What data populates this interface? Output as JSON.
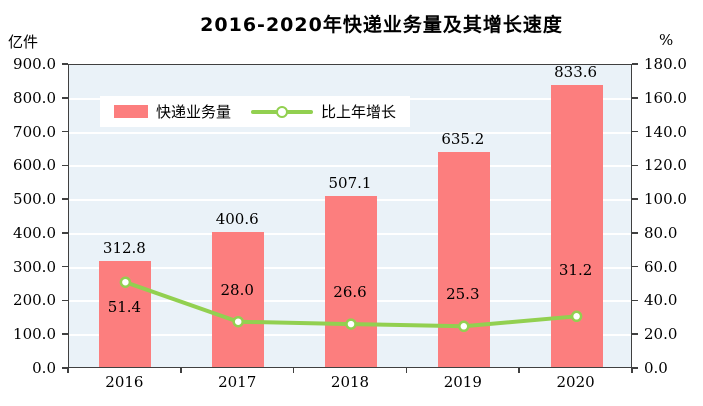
{
  "title": "2016-2020年快递业务量及其增长速度",
  "left_axis_unit": "亿件",
  "right_axis_unit": "%",
  "legend": {
    "bar_label": "快递业务量",
    "line_label": "比上年增长"
  },
  "colors": {
    "bar": "#fc7e7e",
    "line": "#92d050",
    "marker_fill": "#ffffff",
    "plot_bg": "#eaf2f8",
    "grid": "#ffffff",
    "frame": "#404040",
    "text": "#000000"
  },
  "chart_data": {
    "type": "bar",
    "subtype": "bar+line combo, dual axis",
    "title": "2016-2020年快递业务量及其增长速度",
    "categories": [
      "2016",
      "2017",
      "2018",
      "2019",
      "2020"
    ],
    "series": [
      {
        "name": "快递业务量",
        "type": "bar",
        "axis": "left",
        "values": [
          312.8,
          400.6,
          507.1,
          635.2,
          833.6
        ]
      },
      {
        "name": "比上年增长",
        "type": "line",
        "axis": "right",
        "values": [
          51.4,
          28.0,
          26.6,
          25.3,
          31.2
        ]
      }
    ],
    "left_axis": {
      "unit": "亿件",
      "min": 0.0,
      "max": 900.0,
      "step": 100.0
    },
    "right_axis": {
      "unit": "%",
      "min": 0.0,
      "max": 180.0,
      "step": 20.0
    },
    "grid": true,
    "legend_position": "inside-top-left",
    "data_labels": true
  }
}
